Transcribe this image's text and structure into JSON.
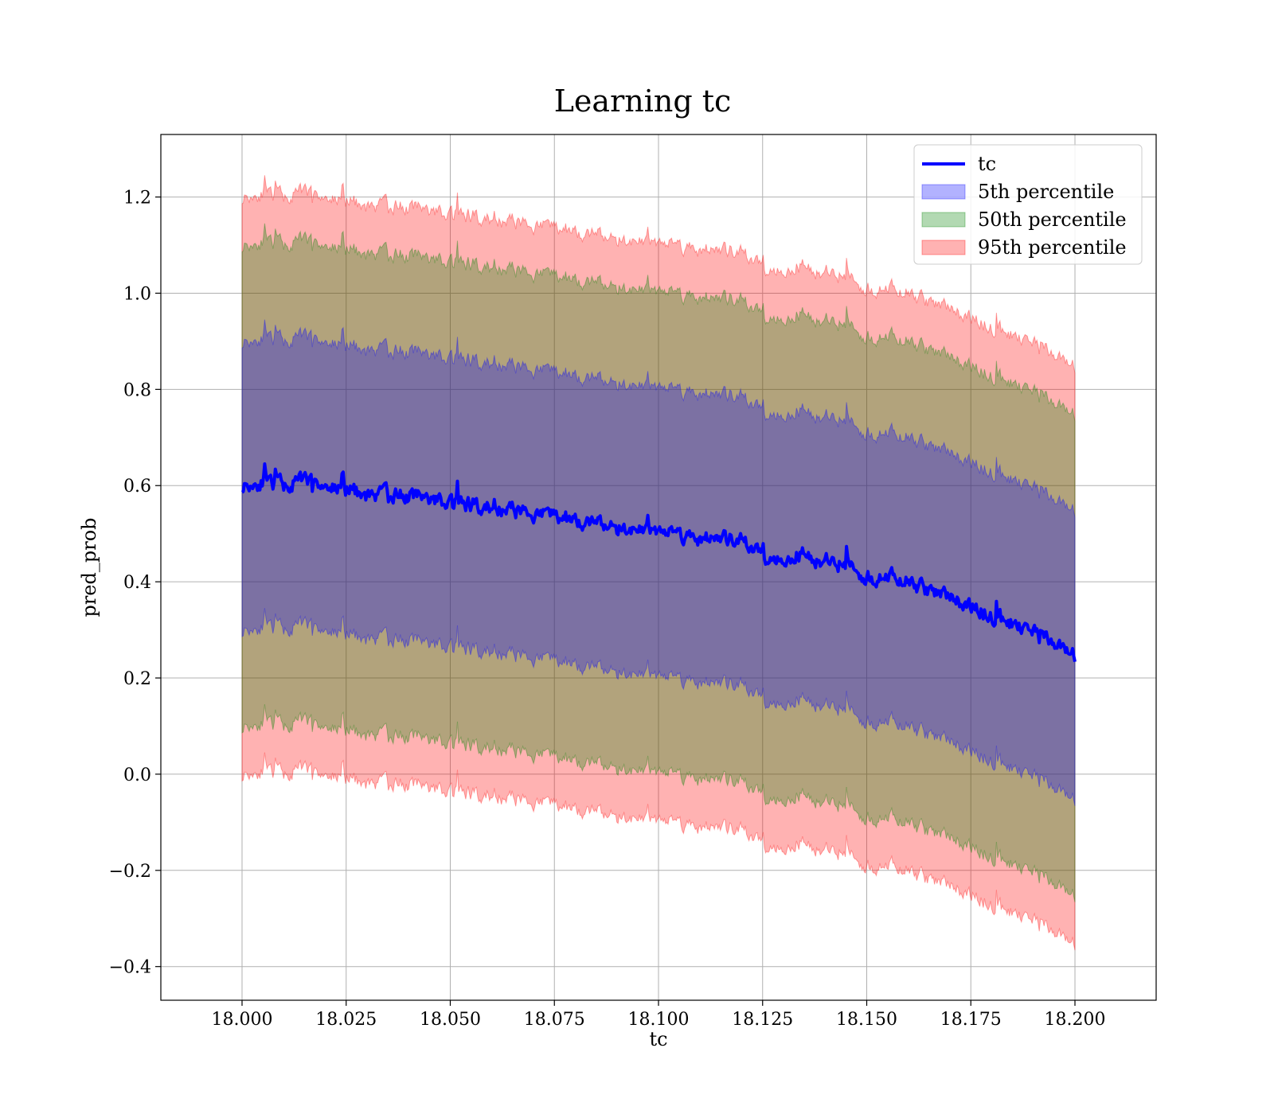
{
  "chart_data": {
    "type": "area",
    "title": "Learning tc",
    "xlabel": "tc",
    "ylabel": "pred_prob",
    "xlim": [
      17.9805,
      18.2195
    ],
    "ylim": [
      -0.47,
      1.33
    ],
    "grid": true,
    "legend_position": "top-right",
    "x_ticks": [
      18.0,
      18.025,
      18.05,
      18.075,
      18.1,
      18.125,
      18.15,
      18.175,
      18.2
    ],
    "x_tick_labels": [
      "18.000",
      "18.025",
      "18.050",
      "18.075",
      "18.100",
      "18.125",
      "18.150",
      "18.175",
      "18.200"
    ],
    "y_ticks": [
      -0.4,
      -0.2,
      0.0,
      0.2,
      0.4,
      0.6,
      0.8,
      1.0,
      1.2
    ],
    "y_tick_labels": [
      "−0.4",
      "−0.2",
      "0.0",
      "0.2",
      "0.4",
      "0.6",
      "0.8",
      "1.0",
      "1.2"
    ],
    "x": [
      18.0,
      18.005,
      18.01,
      18.015,
      18.02,
      18.025,
      18.03,
      18.035,
      18.04,
      18.045,
      18.05,
      18.055,
      18.06,
      18.065,
      18.07,
      18.075,
      18.08,
      18.085,
      18.09,
      18.095,
      18.1,
      18.105,
      18.11,
      18.115,
      18.12,
      18.125,
      18.13,
      18.135,
      18.14,
      18.145,
      18.15,
      18.155,
      18.16,
      18.165,
      18.17,
      18.175,
      18.18,
      18.185,
      18.19,
      18.195,
      18.2
    ],
    "series": [
      {
        "name": "tc",
        "kind": "line",
        "color": "#0000ff",
        "values": [
          0.6,
          0.61,
          0.6,
          0.61,
          0.6,
          0.59,
          0.58,
          0.58,
          0.58,
          0.57,
          0.57,
          0.56,
          0.55,
          0.55,
          0.54,
          0.54,
          0.53,
          0.52,
          0.51,
          0.51,
          0.51,
          0.5,
          0.49,
          0.49,
          0.48,
          0.46,
          0.45,
          0.46,
          0.44,
          0.44,
          0.41,
          0.41,
          0.4,
          0.38,
          0.37,
          0.35,
          0.33,
          0.31,
          0.3,
          0.28,
          0.25
        ]
      },
      {
        "name": "5th percentile",
        "kind": "band",
        "color": "#0000ff",
        "offset": 0.3
      },
      {
        "name": "50th percentile",
        "kind": "band",
        "color": "#008000",
        "offset": 0.5
      },
      {
        "name": "95th percentile",
        "kind": "band",
        "color": "#ff0000",
        "offset": 0.6
      }
    ]
  }
}
